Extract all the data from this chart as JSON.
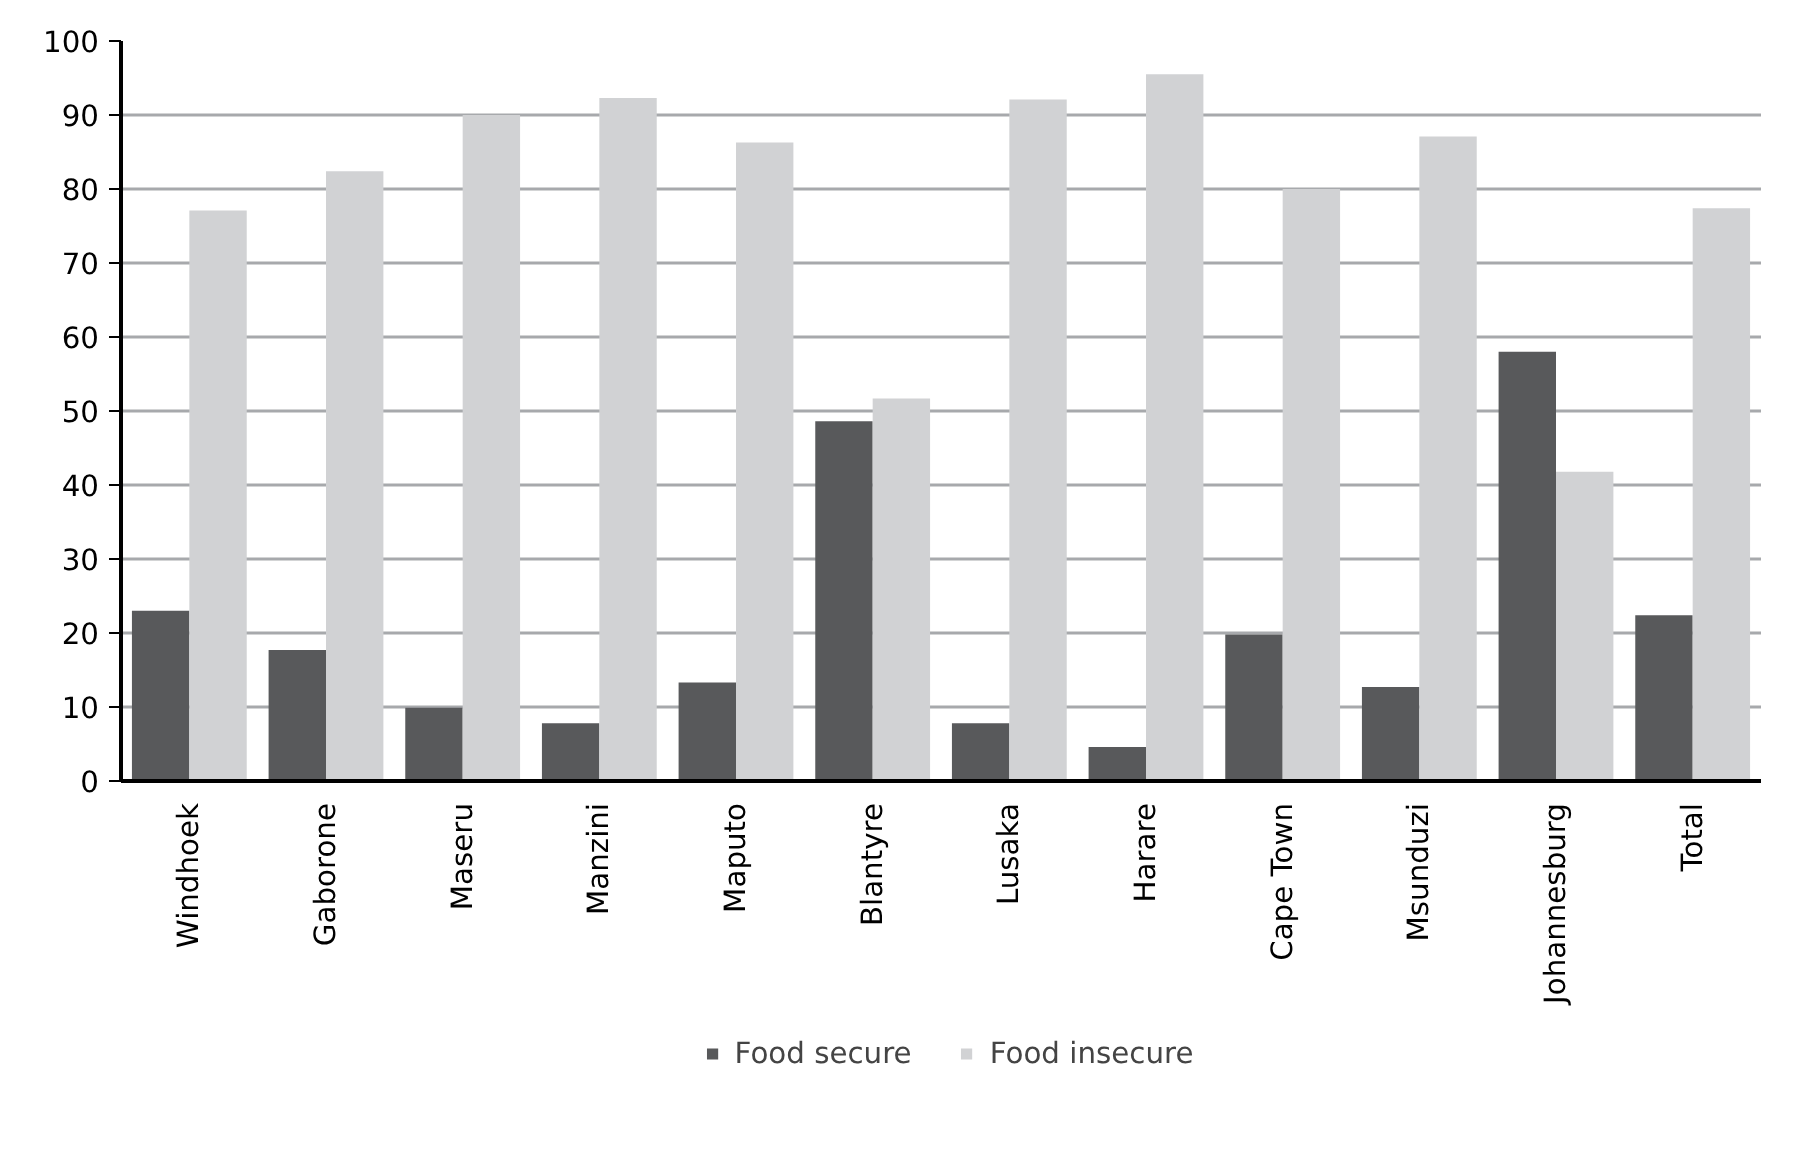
{
  "chart_data": {
    "type": "bar",
    "categories": [
      "Windhoek",
      "Gaborone",
      "Maseru",
      "Manzini",
      "Maputo",
      "Blantyre",
      "Lusaka",
      "Harare",
      "Cape Town",
      "Msunduzi",
      "Johannesburg",
      "Total"
    ],
    "series": [
      {
        "name": "Food secure",
        "color": "#58595b",
        "values": [
          23,
          17.7,
          9.9,
          7.8,
          13.3,
          48.6,
          7.8,
          4.6,
          19.8,
          12.7,
          58,
          22.4
        ]
      },
      {
        "name": "Food insecure",
        "color": "#d1d2d4",
        "values": [
          77.1,
          82.4,
          90,
          92.3,
          86.3,
          51.7,
          92.1,
          95.5,
          80,
          87.1,
          41.8,
          77.4
        ]
      }
    ],
    "ylim": [
      0,
      100
    ],
    "yticks": [
      0,
      10,
      20,
      30,
      40,
      50,
      60,
      70,
      80,
      90,
      100
    ],
    "grid": "y",
    "legend": "bottom"
  }
}
